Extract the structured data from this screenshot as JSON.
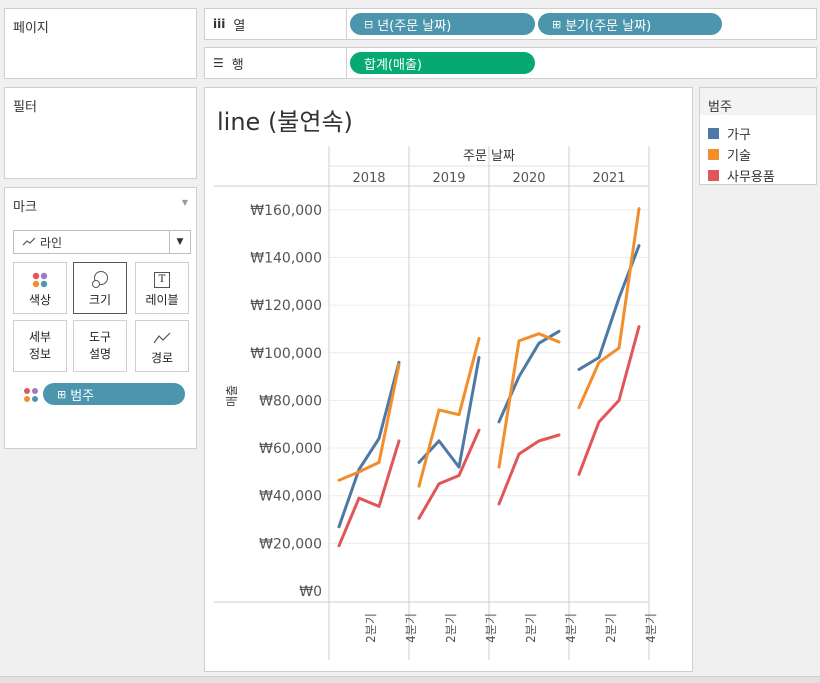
{
  "pages_card": {
    "title": "페이지"
  },
  "filters_card": {
    "title": "필터"
  },
  "marks_card": {
    "title": "마크",
    "mark_type": "라인",
    "buttons": [
      {
        "label": "색상",
        "icon": "color-dots-icon"
      },
      {
        "label": "크기",
        "icon": "size-circles-icon"
      },
      {
        "label": "레이블",
        "icon": "label-t-icon",
        "glyph": "T"
      },
      {
        "label1": "세부",
        "label2": "정보",
        "icon": "detail-icon"
      },
      {
        "label1": "도구",
        "label2": "설명",
        "icon": "tooltip-icon"
      },
      {
        "label": "경로",
        "icon": "path-icon"
      }
    ],
    "color_pill": "범주"
  },
  "shelves": {
    "columns": {
      "label": "열",
      "icon": "iii",
      "pills": [
        {
          "prefix": "⊟",
          "text": "년(주문 날짜)"
        },
        {
          "prefix": "⊞",
          "text": "분기(주문 날짜)"
        }
      ]
    },
    "rows": {
      "label": "행",
      "icon": "☰",
      "pills": [
        {
          "text": "합계(매출)"
        }
      ]
    }
  },
  "legend": {
    "title": "범주",
    "items": [
      {
        "name": "가구",
        "color": "#4e79a7"
      },
      {
        "name": "기술",
        "color": "#f28e2b"
      },
      {
        "name": "사무용품",
        "color": "#e15759"
      }
    ]
  },
  "chart_data": {
    "type": "line",
    "title": "line (불연속)",
    "column_header": "주문 날짜",
    "ylabel": "매출",
    "ylim": [
      0,
      170000
    ],
    "y_ticks": [
      {
        "v": 0,
        "label": "₩0"
      },
      {
        "v": 20000,
        "label": "₩20,000"
      },
      {
        "v": 40000,
        "label": "₩40,000"
      },
      {
        "v": 60000,
        "label": "₩60,000"
      },
      {
        "v": 80000,
        "label": "₩80,000"
      },
      {
        "v": 100000,
        "label": "₩100,000"
      },
      {
        "v": 120000,
        "label": "₩120,000"
      },
      {
        "v": 140000,
        "label": "₩140,000"
      },
      {
        "v": 160000,
        "label": "₩160,000"
      }
    ],
    "years": [
      "2018",
      "2019",
      "2020",
      "2021"
    ],
    "quarter_labels": [
      "2분기",
      "4분기"
    ],
    "series": [
      {
        "name": "가구",
        "color": "#4e79a7",
        "values": [
          [
            27000,
            51000,
            64000,
            96000
          ],
          [
            54000,
            63000,
            52000,
            98000
          ],
          [
            71000,
            90000,
            104000,
            109000
          ],
          [
            93000,
            98000,
            123000,
            145000
          ]
        ]
      },
      {
        "name": "기술",
        "color": "#f28e2b",
        "values": [
          [
            46500,
            50000,
            54000,
            95000
          ],
          [
            44000,
            76000,
            74000,
            106000
          ],
          [
            52000,
            105000,
            108000,
            104500
          ],
          [
            77000,
            96000,
            102000,
            160500
          ]
        ]
      },
      {
        "name": "사무용품",
        "color": "#e15759",
        "values": [
          [
            19000,
            39000,
            35500,
            63000
          ],
          [
            30500,
            45000,
            48500,
            67500
          ],
          [
            36500,
            57500,
            63000,
            65500
          ],
          [
            49000,
            71000,
            80000,
            111000
          ]
        ]
      }
    ]
  }
}
